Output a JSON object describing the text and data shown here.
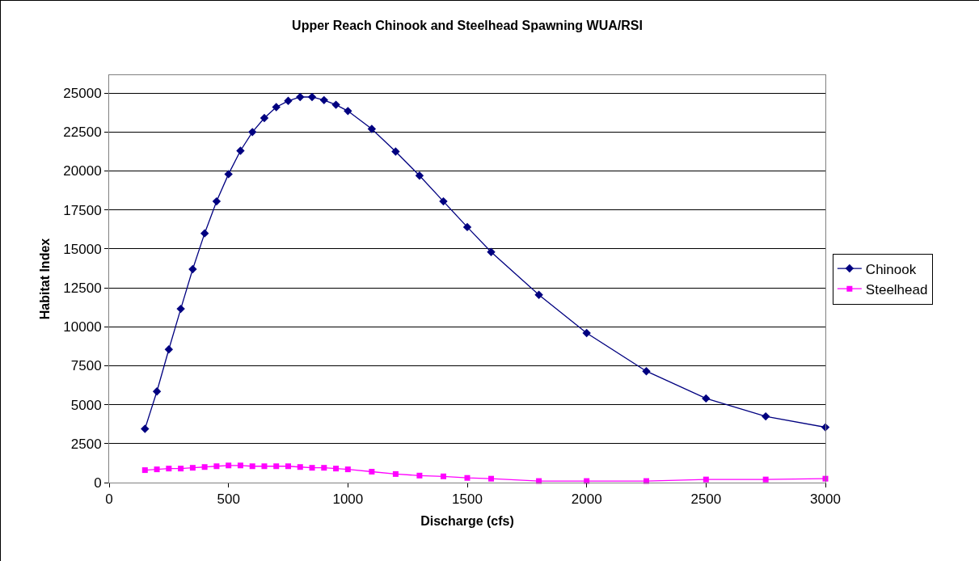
{
  "chart_data": {
    "type": "line",
    "title": "Upper Reach Chinook and Steelhead Spawning WUA/RSI",
    "xlabel": "Discharge (cfs)",
    "ylabel": "Habitat Index",
    "x": [
      150,
      200,
      250,
      300,
      350,
      400,
      450,
      500,
      550,
      600,
      650,
      700,
      750,
      800,
      850,
      900,
      950,
      1000,
      1100,
      1200,
      1300,
      1400,
      1500,
      1600,
      1800,
      2000,
      2250,
      2500,
      2750,
      3000
    ],
    "series": [
      {
        "name": "Chinook",
        "color": "#000080",
        "marker": "diamond",
        "values": [
          3450,
          5850,
          8550,
          11150,
          13700,
          16000,
          18050,
          19800,
          21300,
          22500,
          23400,
          24100,
          24500,
          24750,
          24750,
          24550,
          24250,
          23850,
          22700,
          21250,
          19700,
          18050,
          16400,
          14800,
          12050,
          9600,
          7150,
          5400,
          4250,
          3550
        ]
      },
      {
        "name": "Steelhead",
        "color": "#ff00ff",
        "marker": "square",
        "values": [
          800,
          850,
          900,
          900,
          950,
          1000,
          1050,
          1100,
          1100,
          1050,
          1050,
          1050,
          1050,
          1000,
          950,
          950,
          900,
          850,
          700,
          550,
          450,
          400,
          300,
          250,
          100,
          100,
          100,
          200,
          200,
          250
        ]
      }
    ],
    "xlim": [
      0,
      3000
    ],
    "xticks": [
      0,
      500,
      1000,
      1500,
      2000,
      2500,
      3000
    ],
    "ylim": [
      0,
      26150
    ],
    "yticks": [
      0,
      2500,
      5000,
      7500,
      10000,
      12500,
      15000,
      17500,
      20000,
      22500,
      25000
    ],
    "grid": "y",
    "legend": "right",
    "line_style": "solid"
  }
}
